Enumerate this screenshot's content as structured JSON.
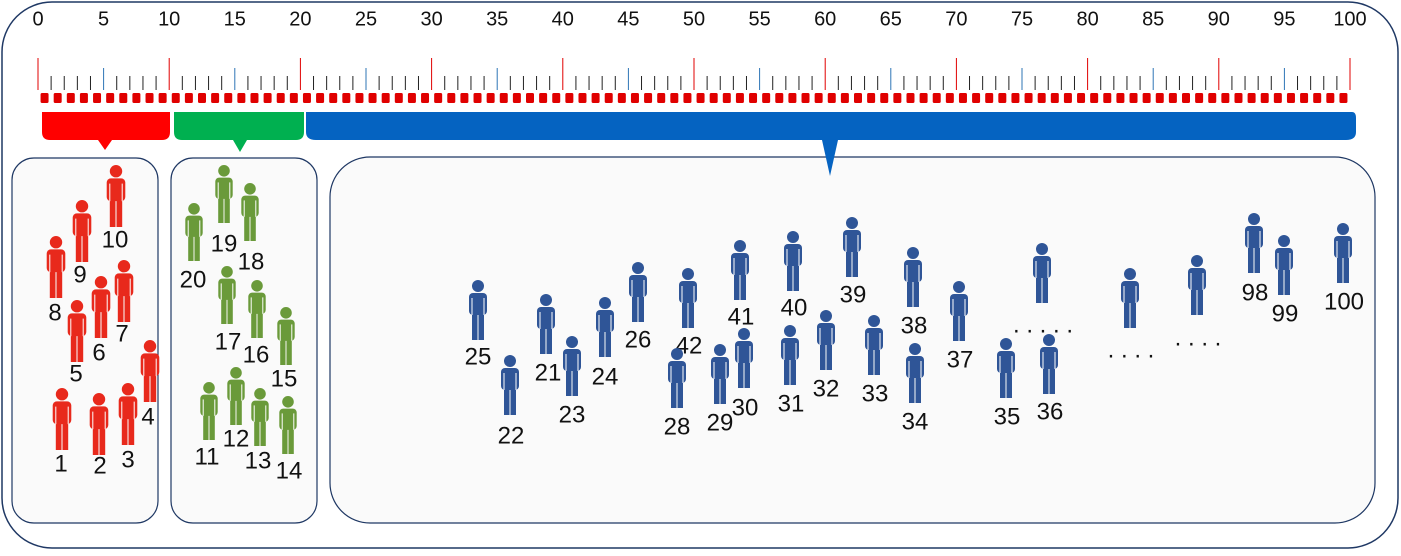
{
  "ruler": {
    "labels": [
      "0",
      "5",
      "10",
      "15",
      "20",
      "25",
      "30",
      "35",
      "40",
      "45",
      "50",
      "55",
      "60",
      "65",
      "70",
      "75",
      "80",
      "85",
      "90",
      "95",
      "100"
    ]
  },
  "groups": [
    {
      "people": [
        "10",
        "9",
        "8",
        "7",
        "6",
        "5",
        "4",
        "3",
        "2",
        "1"
      ]
    },
    {
      "people": [
        "19",
        "18",
        "20",
        "17",
        "16",
        "15",
        "12",
        "11",
        "13",
        "14"
      ]
    },
    {
      "people": [
        "25",
        "22",
        "21",
        "23",
        "24",
        "26",
        "42",
        "28",
        "29",
        "30",
        "41",
        "40",
        "31",
        "32",
        "39",
        "33",
        "38",
        "34",
        "37",
        "35",
        "36",
        "98",
        "99",
        "100"
      ]
    }
  ],
  "ellipses": [
    ". . . . .",
    ". . . .",
    ". . . ."
  ]
}
